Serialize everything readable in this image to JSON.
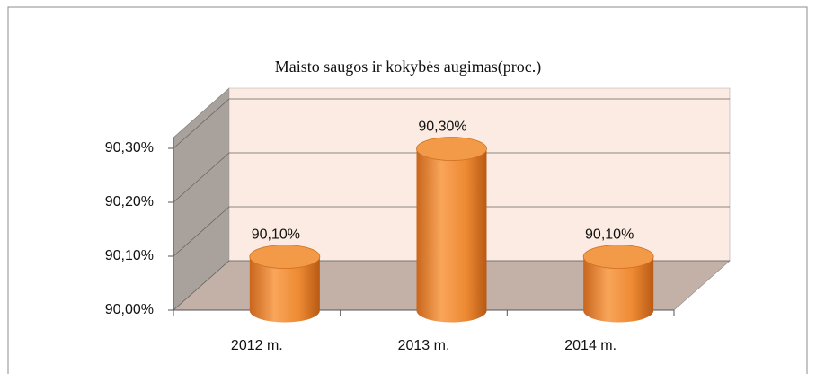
{
  "chart_data": {
    "type": "bar3d",
    "title": "Maisto saugos ir kokybės augimas(proc.)",
    "categories": [
      "2012 m.",
      "2013 m.",
      "2014 m."
    ],
    "values": [
      90.1,
      90.3,
      90.1
    ],
    "value_labels": [
      "90,10%",
      "90,30%",
      "90,10%"
    ],
    "color": "#f0903a",
    "ylim": [
      90,
      90.32
    ],
    "yticks": [
      {
        "value": 90,
        "label": "90,00%"
      },
      {
        "value": 90.1,
        "label": "90,10%"
      },
      {
        "value": 90.2,
        "label": "90,20%"
      },
      {
        "value": 90.3,
        "label": "90,30%"
      }
    ],
    "grid": true
  }
}
